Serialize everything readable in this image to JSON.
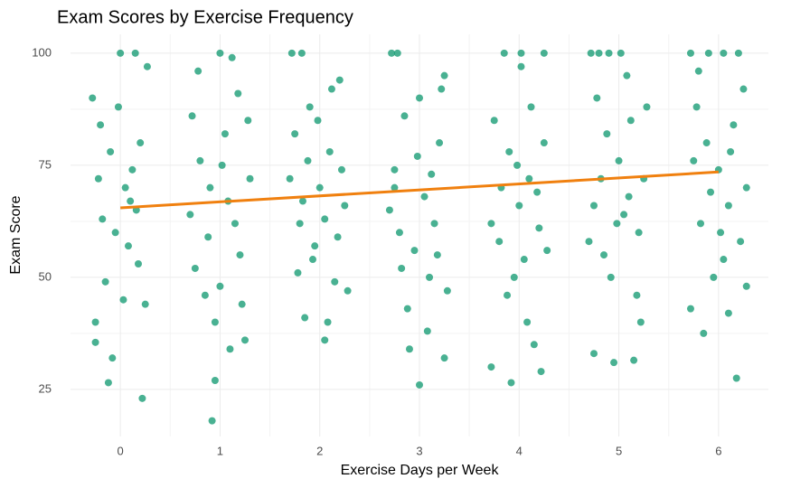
{
  "chart_data": {
    "type": "scatter",
    "title": "Exam Scores by Exercise Frequency",
    "x_label": "Exercise Days per Week",
    "y_label": "Exam Score",
    "xlim": [
      -0.5,
      6.5
    ],
    "xticks": [
      0,
      1,
      2,
      3,
      4,
      5,
      6
    ],
    "ylim": [
      14.5,
      104.2
    ],
    "yticks": [
      25,
      50,
      75,
      100
    ],
    "grid": true,
    "series": [
      {
        "color": "#1b9e77",
        "x": [
          -0.25,
          0.22,
          -0.12,
          0,
          0.15,
          -0.28,
          -0.2,
          -0.1,
          0.05,
          0.2,
          0.1,
          -0.22,
          -0.05,
          0.18,
          -0.15,
          0.25,
          -0.25,
          0.08,
          -0.02,
          0.12,
          -0.18,
          0.27,
          0.03,
          -0.08,
          0.16,
          1.0,
          0.92,
          0.95,
          1.1,
          1.25,
          0.72,
          0.8,
          0.9,
          1.05,
          1.15,
          1.2,
          0.75,
          0.85,
          1.0,
          1.3,
          0.78,
          1.12,
          1.08,
          0.88,
          1.22,
          0.95,
          0.7,
          1.18,
          1.28,
          1.02,
          1.72,
          1.82,
          2.05,
          1.85,
          2.2,
          1.75,
          1.9,
          2.1,
          2.0,
          2.25,
          1.8,
          1.95,
          2.15,
          1.7,
          2.28,
          1.88,
          2.05,
          2.18,
          1.78,
          1.98,
          2.12,
          1.83,
          2.22,
          2.08,
          1.93,
          2.72,
          2.78,
          3.0,
          2.9,
          3.25,
          2.75,
          2.85,
          3.05,
          3.15,
          3.2,
          2.95,
          3.1,
          2.8,
          3.28,
          2.7,
          3.0,
          3.12,
          3.22,
          2.88,
          3.18,
          2.98,
          2.82,
          3.08,
          3.25,
          2.75,
          3.85,
          4.02,
          4.25,
          3.92,
          3.72,
          4.22,
          4.15,
          3.75,
          3.9,
          4.1,
          4.0,
          4.2,
          3.8,
          3.95,
          4.05,
          4.25,
          3.72,
          4.12,
          3.88,
          4.18,
          3.98,
          4.08,
          3.82,
          4.28,
          4.02,
          4.72,
          4.8,
          4.9,
          5.02,
          4.75,
          4.95,
          5.15,
          4.78,
          4.88,
          5.0,
          5.1,
          5.2,
          4.85,
          5.05,
          5.25,
          4.7,
          5.12,
          4.92,
          5.18,
          5.22,
          4.82,
          5.08,
          4.98,
          5.28,
          4.75,
          5.72,
          5.9,
          6.05,
          6.2,
          5.85,
          6.18,
          5.72,
          6.1,
          5.78,
          5.88,
          6.0,
          6.1,
          6.22,
          5.82,
          6.05,
          6.28,
          5.75,
          6.15,
          5.95,
          6.25,
          5.92,
          6.02,
          5.8,
          6.12,
          6.28
        ],
        "values": [
          35.5,
          23,
          26.5,
          100,
          100,
          90,
          84,
          78,
          70,
          80,
          67,
          72,
          60,
          53,
          49,
          44,
          40,
          57,
          88,
          74,
          63,
          97,
          45,
          32,
          65,
          100,
          18,
          27,
          34,
          36,
          86,
          76,
          70,
          82,
          62,
          55,
          52,
          46,
          48,
          72,
          96,
          99,
          67,
          59,
          44,
          40,
          64,
          91,
          85,
          75,
          100,
          100,
          36,
          41,
          94,
          82,
          88,
          78,
          70,
          66,
          62,
          57,
          49,
          72,
          47,
          76,
          63,
          59,
          51,
          85,
          92,
          67,
          74,
          40,
          54,
          100,
          100,
          26,
          34,
          32,
          74,
          86,
          68,
          62,
          80,
          56,
          50,
          60,
          47,
          65,
          90,
          73,
          92,
          43,
          55,
          77,
          52,
          38,
          95,
          70,
          100,
          100,
          100,
          26.5,
          30,
          29,
          35,
          85,
          78,
          72,
          66,
          61,
          58,
          50,
          54,
          80,
          62,
          88,
          46,
          69,
          75,
          40,
          70,
          56,
          97,
          100,
          100,
          100,
          100,
          33,
          31,
          31.5,
          90,
          82,
          76,
          68,
          60,
          55,
          64,
          72,
          58,
          85,
          50,
          46,
          40,
          72,
          95,
          62,
          88,
          66,
          100,
          100,
          100,
          100,
          37.5,
          27.5,
          43,
          42,
          88,
          80,
          74,
          66,
          58,
          62,
          54,
          70,
          76,
          84,
          50,
          92,
          69,
          60,
          96,
          78,
          48
        ]
      }
    ],
    "trend": {
      "type": "line",
      "color": "#f0800f",
      "x": [
        0,
        6
      ],
      "values": [
        65.5,
        73.5
      ]
    }
  }
}
